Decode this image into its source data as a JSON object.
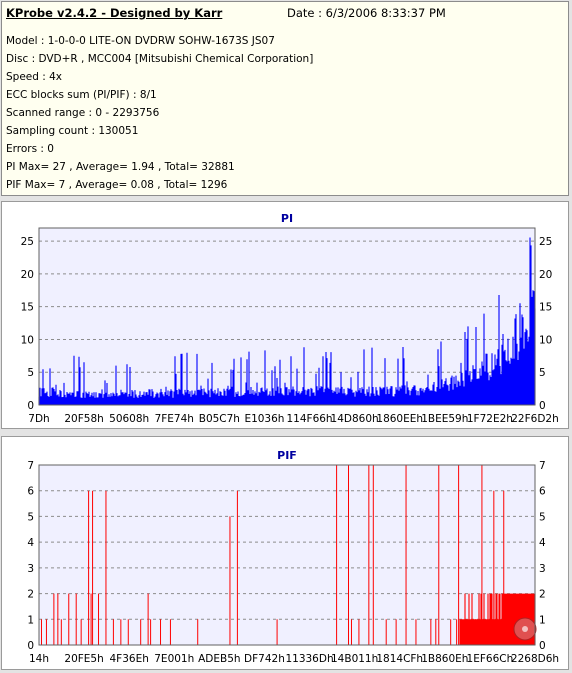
{
  "header": {
    "app_title": "KProbe v2.4.2 - Designed by Karr",
    "date": "Date : 6/3/2006 8:33:37 PM",
    "lines": [
      "Model : 1-0-0-0 LITE-ON DVDRW SOHW-1673S JS07",
      "Disc : DVD+R , MCC004 [Mitsubishi Chemical Corporation]",
      "Speed : 4x",
      "ECC blocks sum (PI/PIF) : 8/1",
      "Scanned range : 0 - 2293756",
      "Sampling count : 130051",
      "Errors : 0",
      "PI Max= 27 , Average= 1.94 , Total= 32881",
      "PIF Max= 7 , Average= 0.08 , Total= 1296"
    ]
  },
  "colors": {
    "pi_fill": "#0000ff",
    "pif_fill": "#ff0000",
    "plot_bg": "#f0f0ff",
    "grid": "#8c8c8c",
    "title": "#0000a0",
    "info_bg": "#fffff0"
  },
  "chart_data": [
    {
      "type": "area",
      "title": "PI",
      "ylim": [
        0,
        27
      ],
      "yticks": [
        0,
        5,
        10,
        15,
        20,
        25
      ],
      "yticks_right": true,
      "grid": "horizontal dashed",
      "xtick_labels": [
        "7Dh",
        "20F58h",
        "50608h",
        "7FE74h",
        "B05C7h",
        "E1036h",
        "114F66h",
        "14D860h",
        "1860EEh",
        "1BEE59h",
        "1F72E2h",
        "22F6D2h"
      ],
      "x_range": [
        0,
        1
      ],
      "series": [
        {
          "profile": [
            [
              0.0,
              1.8,
              9
            ],
            [
              0.1,
              1.5,
              7
            ],
            [
              0.2,
              1.5,
              7
            ],
            [
              0.3,
              1.6,
              8
            ],
            [
              0.4,
              1.7,
              8
            ],
            [
              0.5,
              1.8,
              9
            ],
            [
              0.6,
              1.8,
              9
            ],
            [
              0.7,
              1.8,
              9
            ],
            [
              0.78,
              2.0,
              9
            ],
            [
              0.82,
              2.6,
              10
            ],
            [
              0.86,
              3.5,
              13
            ],
            [
              0.9,
              5.0,
              16
            ],
            [
              0.94,
              7.0,
              20
            ],
            [
              0.97,
              10.0,
              24
            ],
            [
              1.0,
              12.0,
              27
            ]
          ]
        }
      ]
    },
    {
      "type": "bar",
      "title": "PIF",
      "ylim": [
        0,
        7
      ],
      "yticks": [
        0,
        1,
        2,
        3,
        4,
        5,
        6,
        7
      ],
      "yticks_right": true,
      "grid": "horizontal dashed",
      "xtick_labels": [
        "14h",
        "20FE5h",
        "4F36Eh",
        "7E001h",
        "ADEB5h",
        "DF742h",
        "11336Dh",
        "14B011h",
        "1814CFh",
        "1B860Eh",
        "1EF66Ch",
        "2268D6h"
      ],
      "x_range": [
        0,
        1
      ],
      "series": [
        {
          "spikes": [
            [
              0.005,
              1
            ],
            [
              0.015,
              1
            ],
            [
              0.03,
              2
            ],
            [
              0.038,
              2
            ],
            [
              0.045,
              1
            ],
            [
              0.06,
              2
            ],
            [
              0.075,
              2
            ],
            [
              0.085,
              1
            ],
            [
              0.1,
              6
            ],
            [
              0.105,
              2
            ],
            [
              0.12,
              2
            ],
            [
              0.135,
              6
            ],
            [
              0.15,
              1
            ],
            [
              0.165,
              1
            ],
            [
              0.18,
              1
            ],
            [
              0.205,
              1
            ],
            [
              0.22,
              2
            ],
            [
              0.225,
              1
            ],
            [
              0.245,
              1
            ],
            [
              0.265,
              1
            ],
            [
              0.32,
              1
            ],
            [
              0.4,
              6
            ],
            [
              0.48,
              1
            ],
            [
              0.6,
              7
            ],
            [
              0.63,
              1
            ],
            [
              0.645,
              1
            ],
            [
              0.665,
              7
            ],
            [
              0.7,
              1
            ],
            [
              0.72,
              1
            ],
            [
              0.76,
              1
            ],
            [
              0.79,
              1
            ],
            [
              0.8,
              1
            ],
            [
              0.83,
              1
            ],
            [
              0.842,
              1
            ],
            [
              0.862,
              1
            ],
            [
              0.88,
              1
            ],
            [
              0.895,
              1
            ],
            [
              0.905,
              1
            ],
            [
              0.915,
              1
            ],
            [
              0.932,
              1
            ],
            [
              0.95,
              1
            ],
            [
              0.97,
              1
            ]
          ],
          "tall_spikes": [
            [
              0.108,
              6
            ],
            [
              0.385,
              5
            ],
            [
              0.624,
              7
            ],
            [
              0.674,
              7
            ],
            [
              0.74,
              7
            ],
            [
              0.806,
              7
            ],
            [
              0.846,
              7
            ],
            [
              0.893,
              7
            ],
            [
              0.917,
              6
            ],
            [
              0.937,
              6
            ]
          ],
          "dense_start": 0.848,
          "dense_profile": [
            [
              0.848,
              1
            ],
            [
              0.9,
              1.5
            ],
            [
              0.95,
              2
            ],
            [
              1.0,
              2
            ]
          ]
        }
      ]
    }
  ]
}
